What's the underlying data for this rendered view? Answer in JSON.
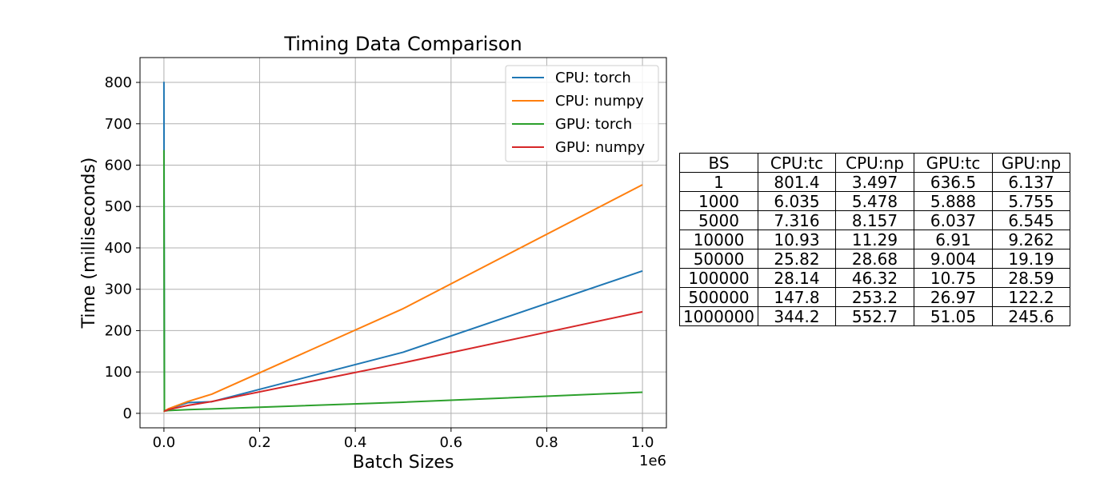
{
  "chart_data": {
    "type": "line",
    "title": "Timing Data Comparison",
    "xlabel": "Batch Sizes",
    "ylabel": "Time (milliseconds)",
    "x_exponent_label": "1e6",
    "x": [
      1,
      1000,
      5000,
      10000,
      50000,
      100000,
      500000,
      1000000
    ],
    "xlim": [
      -50000,
      1050000
    ],
    "ylim": [
      -35,
      860
    ],
    "xticks": [
      0,
      200000,
      400000,
      600000,
      800000,
      1000000
    ],
    "xtick_labels": [
      "0.0",
      "0.2",
      "0.4",
      "0.6",
      "0.8",
      "1.0"
    ],
    "yticks": [
      0,
      100,
      200,
      300,
      400,
      500,
      600,
      700,
      800
    ],
    "ytick_labels": [
      "0",
      "100",
      "200",
      "300",
      "400",
      "500",
      "600",
      "700",
      "800"
    ],
    "grid": true,
    "legend_position": "top-right",
    "series": [
      {
        "name": "CPU: torch",
        "color": "#1f77b4",
        "values": [
          801.4,
          6.035,
          7.316,
          10.93,
          25.82,
          28.14,
          147.8,
          344.2
        ]
      },
      {
        "name": "CPU: numpy",
        "color": "#ff7f0e",
        "values": [
          3.497,
          5.478,
          8.157,
          11.29,
          28.68,
          46.32,
          253.2,
          552.7
        ]
      },
      {
        "name": "GPU: torch",
        "color": "#2ca02c",
        "values": [
          636.5,
          5.888,
          6.037,
          6.91,
          9.004,
          10.75,
          26.97,
          51.05
        ]
      },
      {
        "name": "GPU: numpy",
        "color": "#d62728",
        "values": [
          6.137,
          5.755,
          6.545,
          9.262,
          19.19,
          28.59,
          122.2,
          245.6
        ]
      }
    ]
  },
  "table": {
    "headers": [
      "BS",
      "CPU:tc",
      "CPU:np",
      "GPU:tc",
      "GPU:np"
    ],
    "rows": [
      [
        "1",
        "801.4",
        "3.497",
        "636.5",
        "6.137"
      ],
      [
        "1000",
        "6.035",
        "5.478",
        "5.888",
        "5.755"
      ],
      [
        "5000",
        "7.316",
        "8.157",
        "6.037",
        "6.545"
      ],
      [
        "10000",
        "10.93",
        "11.29",
        "6.91",
        "9.262"
      ],
      [
        "50000",
        "25.82",
        "28.68",
        "9.004",
        "19.19"
      ],
      [
        "100000",
        "28.14",
        "46.32",
        "10.75",
        "28.59"
      ],
      [
        "500000",
        "147.8",
        "253.2",
        "26.97",
        "122.2"
      ],
      [
        "1000000",
        "344.2",
        "552.7",
        "51.05",
        "245.6"
      ]
    ]
  }
}
